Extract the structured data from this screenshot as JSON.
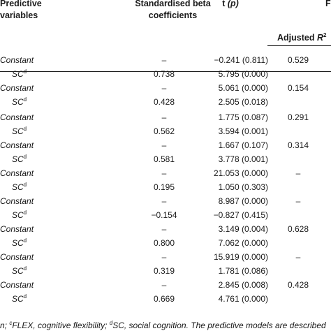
{
  "header": {
    "predictive_line1": "Predictive",
    "predictive_line2": "variables",
    "beta_line1": "Standardised beta",
    "beta_line2": "coefficients",
    "t_label": "t",
    "t_p": "(p)",
    "adjusted_label": "Adjusted ",
    "r_label": "R",
    "r_sup": "2",
    "cut_right": "F"
  },
  "rows": [
    {
      "predictor": "Constant",
      "sup": "",
      "beta": "–",
      "t": "−0.241 (0.811)",
      "adj_r2": "0.529"
    },
    {
      "predictor": "SC",
      "sup": "d",
      "beta": "0.738",
      "t": "5.795 (0.000)",
      "adj_r2": ""
    },
    {
      "predictor": "Constant",
      "sup": "",
      "beta": "–",
      "t": "5.061 (0.000)",
      "adj_r2": "0.154"
    },
    {
      "predictor": "SC",
      "sup": "d",
      "beta": "0.428",
      "t": "2.505 (0.018)",
      "adj_r2": ""
    },
    {
      "predictor": "Constant",
      "sup": "",
      "beta": "–",
      "t": "1.775 (0.087)",
      "adj_r2": "0.291"
    },
    {
      "predictor": "SC",
      "sup": "d",
      "beta": "0.562",
      "t": "3.594 (0.001)",
      "adj_r2": ""
    },
    {
      "predictor": "Constant",
      "sup": "",
      "beta": "–",
      "t": "1.667 (0.107)",
      "adj_r2": "0.314"
    },
    {
      "predictor": "SC",
      "sup": "d",
      "beta": "0.581",
      "t": "3.778 (0.001)",
      "adj_r2": ""
    },
    {
      "predictor": "Constant",
      "sup": "",
      "beta": "–",
      "t": "21.053 (0.000)",
      "adj_r2": "–"
    },
    {
      "predictor": "SC",
      "sup": "d",
      "beta": "0.195",
      "t": "1.050 (0.303)",
      "adj_r2": ""
    },
    {
      "predictor": "Constant",
      "sup": "",
      "beta": "–",
      "t": "8.987 (0.000)",
      "adj_r2": "–"
    },
    {
      "predictor": "SC",
      "sup": "d",
      "beta": "−0.154",
      "t": "−0.827 (0.415)",
      "adj_r2": ""
    },
    {
      "predictor": "Constant",
      "sup": "",
      "beta": "–",
      "t": "3.149 (0.004)",
      "adj_r2": "0.628"
    },
    {
      "predictor": "SC",
      "sup": "d",
      "beta": "0.800",
      "t": "7.062 (0.000)",
      "adj_r2": ""
    },
    {
      "predictor": "Constant",
      "sup": "",
      "beta": "–",
      "t": "15.919 (0.000)",
      "adj_r2": "–"
    },
    {
      "predictor": "SC",
      "sup": "d",
      "beta": "0.319",
      "t": "1.781 (0.086)",
      "adj_r2": ""
    },
    {
      "predictor": "Constant",
      "sup": "",
      "beta": "–",
      "t": "2.845 (0.008)",
      "adj_r2": "0.428"
    },
    {
      "predictor": "SC",
      "sup": "d",
      "beta": "0.669",
      "t": "4.761 (0.000)",
      "adj_r2": ""
    }
  ],
  "footer": {
    "part1": "n; ",
    "sup_c": "c",
    "part2": "FLEX, cognitive flexibility; ",
    "sup_d": "d",
    "part3": "SC, social cognition. The predictive models are described"
  }
}
